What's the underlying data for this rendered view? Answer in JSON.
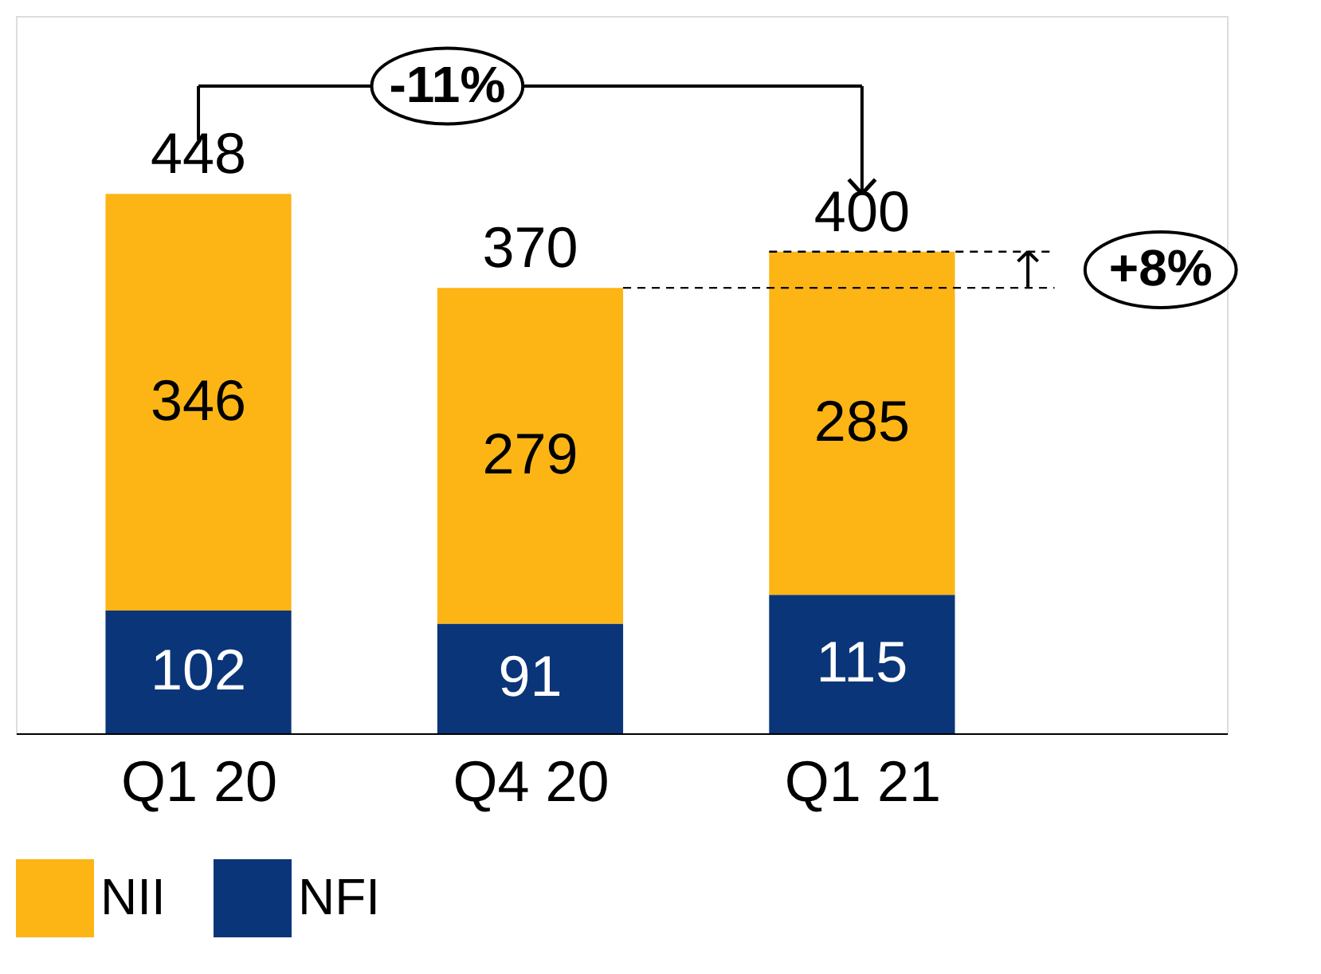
{
  "chart_data": {
    "type": "bar",
    "stacked": true,
    "categories": [
      "Q1 20",
      "Q4 20",
      "Q1 21"
    ],
    "series": [
      {
        "name": "NFI",
        "color": "#0a3579",
        "values": [
          102,
          91,
          115
        ]
      },
      {
        "name": "NII",
        "color": "#fdb515",
        "values": [
          346,
          279,
          285
        ]
      }
    ],
    "data_labels": true,
    "totals": [
      "448",
      "370",
      "400"
    ],
    "annotations": [
      "-11%",
      "+8%"
    ],
    "legend": "bottom",
    "grid": false
  }
}
